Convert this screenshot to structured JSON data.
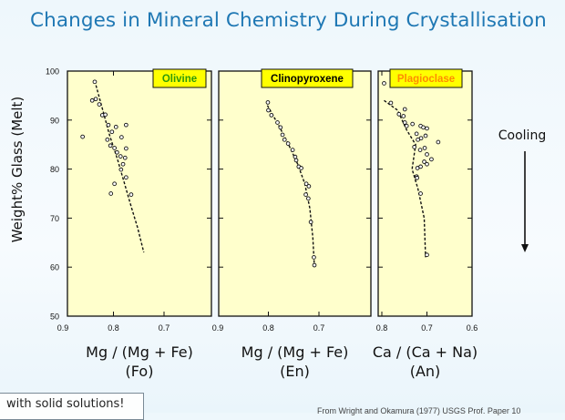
{
  "title": "Changes in Mineral Chemistry During Crystallisation",
  "y_axis_label": "Weight% Glass (Melt)",
  "cooling_label": "Cooling",
  "footnote": "with solid solutions!",
  "source": "From Wright and Okamura (1977) USGS Prof. Paper 10",
  "colors": {
    "title": "#1f78b4",
    "panel_bg": "#ffffcc",
    "olivine_label": "#2e9a0a",
    "clinopyroxene_label": "#000000",
    "plagioclase_label": "#ff8c00",
    "label_bg": "#ffff00"
  },
  "chart_data": [
    {
      "type": "scatter",
      "title": "Olivine",
      "xlabel": "Mg / (Mg + Fe)",
      "xlabel2": "(Fo)",
      "xlim": [
        0.9,
        0.7
      ],
      "xticks": [
        "0.9",
        "0.8",
        "0.7"
      ],
      "ylim": [
        50,
        100
      ],
      "yticks": [
        "50",
        "60",
        "70",
        "80",
        "90",
        "100"
      ],
      "ylabel": "Weight% Glass (Melt)",
      "points": [
        [
          0.837,
          97.8
        ],
        [
          0.835,
          94.3
        ],
        [
          0.842,
          94.0
        ],
        [
          0.828,
          93.2
        ],
        [
          0.822,
          91.0
        ],
        [
          0.816,
          91.1
        ],
        [
          0.81,
          89.0
        ],
        [
          0.795,
          88.6
        ],
        [
          0.775,
          89.0
        ],
        [
          0.803,
          87.6
        ],
        [
          0.812,
          86.0
        ],
        [
          0.806,
          84.8
        ],
        [
          0.793,
          83.4
        ],
        [
          0.798,
          84.3
        ],
        [
          0.784,
          86.5
        ],
        [
          0.775,
          84.2
        ],
        [
          0.786,
          82.6
        ],
        [
          0.781,
          81.0
        ],
        [
          0.777,
          82.3
        ],
        [
          0.785,
          79.9
        ],
        [
          0.775,
          78.3
        ],
        [
          0.798,
          77.0
        ],
        [
          0.805,
          75.0
        ],
        [
          0.765,
          74.8
        ],
        [
          0.861,
          86.6
        ]
      ],
      "trend": [
        [
          0.837,
          98
        ],
        [
          0.821,
          92
        ],
        [
          0.808,
          87
        ],
        [
          0.792,
          82
        ],
        [
          0.778,
          77
        ],
        [
          0.764,
          72
        ],
        [
          0.752,
          68
        ],
        [
          0.74,
          63
        ]
      ]
    },
    {
      "type": "scatter",
      "title": "Clinopyroxene",
      "xlabel": "Mg / (Mg + Fe)",
      "xlabel2": "(En)",
      "xlim": [
        0.9,
        0.7
      ],
      "xticks": [
        "0.9",
        "0.8",
        "0.7"
      ],
      "ylim": [
        50,
        100
      ],
      "points": [
        [
          0.801,
          93.6
        ],
        [
          0.8,
          92.0
        ],
        [
          0.794,
          91.0
        ],
        [
          0.782,
          89.5
        ],
        [
          0.776,
          88.5
        ],
        [
          0.772,
          87.0
        ],
        [
          0.768,
          86.0
        ],
        [
          0.761,
          85.2
        ],
        [
          0.752,
          83.9
        ],
        [
          0.747,
          82.5
        ],
        [
          0.745,
          81.8
        ],
        [
          0.74,
          80.5
        ],
        [
          0.735,
          80.2
        ],
        [
          0.725,
          77.0
        ],
        [
          0.72,
          76.5
        ],
        [
          0.726,
          74.8
        ],
        [
          0.721,
          74.0
        ],
        [
          0.716,
          69.2
        ],
        [
          0.71,
          62.0
        ],
        [
          0.709,
          60.4
        ]
      ],
      "trend": [
        [
          0.802,
          93
        ],
        [
          0.78,
          89
        ],
        [
          0.76,
          85
        ],
        [
          0.742,
          81
        ],
        [
          0.728,
          77
        ],
        [
          0.718,
          72
        ],
        [
          0.712,
          66
        ],
        [
          0.709,
          60
        ]
      ]
    },
    {
      "type": "scatter",
      "title": "Plagioclase",
      "xlabel": "Ca / (Ca + Na)",
      "xlabel2": "(An)",
      "xlim": [
        0.8,
        0.6
      ],
      "xticks": [
        "0.8",
        "0.7",
        "0.6"
      ],
      "ylim": [
        50,
        100
      ],
      "points": [
        [
          0.795,
          97.5
        ],
        [
          0.78,
          93.5
        ],
        [
          0.749,
          92.2
        ],
        [
          0.762,
          91.2
        ],
        [
          0.752,
          90.8
        ],
        [
          0.749,
          89.5
        ],
        [
          0.732,
          89.2
        ],
        [
          0.714,
          88.8
        ],
        [
          0.745,
          88.8
        ],
        [
          0.708,
          88.5
        ],
        [
          0.7,
          88.3
        ],
        [
          0.723,
          87.2
        ],
        [
          0.703,
          86.8
        ],
        [
          0.713,
          86.3
        ],
        [
          0.72,
          86.0
        ],
        [
          0.675,
          85.5
        ],
        [
          0.728,
          84.5
        ],
        [
          0.705,
          84.3
        ],
        [
          0.715,
          83.9
        ],
        [
          0.7,
          83.0
        ],
        [
          0.69,
          82.0
        ],
        [
          0.706,
          81.5
        ],
        [
          0.7,
          81.0
        ],
        [
          0.714,
          80.5
        ],
        [
          0.721,
          80.2
        ],
        [
          0.723,
          78.5
        ],
        [
          0.722,
          78.2
        ],
        [
          0.714,
          75.0
        ],
        [
          0.7,
          62.5
        ]
      ],
      "trend": [
        [
          0.795,
          94
        ],
        [
          0.765,
          92
        ],
        [
          0.745,
          88
        ],
        [
          0.725,
          85
        ],
        [
          0.733,
          80
        ],
        [
          0.72,
          76
        ],
        [
          0.706,
          70
        ],
        [
          0.703,
          62
        ]
      ]
    }
  ]
}
